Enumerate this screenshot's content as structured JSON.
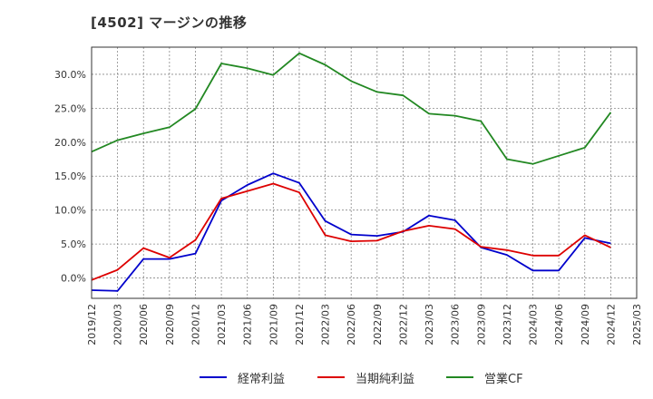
{
  "chart_data": {
    "type": "line",
    "title": "[4502]  マージンの推移",
    "x": [
      "2019/12",
      "2020/03",
      "2020/06",
      "2020/09",
      "2020/12",
      "2021/03",
      "2021/06",
      "2021/09",
      "2021/12",
      "2022/03",
      "2022/06",
      "2022/09",
      "2022/12",
      "2023/03",
      "2023/06",
      "2023/09",
      "2023/12",
      "2024/03",
      "2024/06",
      "2024/09",
      "2024/12",
      "2025/03"
    ],
    "ylim": [
      -3.0,
      34.0
    ],
    "yticks": [
      0,
      5,
      10,
      15,
      20,
      25,
      30
    ],
    "ytick_labels": [
      "0.0%",
      "5.0%",
      "10.0%",
      "15.0%",
      "20.0%",
      "25.0%",
      "30.0%"
    ],
    "grid": true,
    "legend_position": "bottom",
    "series": [
      {
        "name": "経常利益",
        "color": "#0000cc",
        "values": [
          -1.8,
          -1.9,
          2.8,
          2.8,
          3.6,
          11.4,
          13.7,
          15.4,
          14.0,
          8.4,
          6.4,
          6.2,
          6.8,
          9.2,
          8.5,
          4.5,
          3.4,
          1.1,
          1.1,
          5.9,
          5.1,
          null
        ]
      },
      {
        "name": "当期純利益",
        "color": "#dd0000",
        "values": [
          -0.3,
          1.2,
          4.4,
          3.0,
          5.6,
          11.7,
          12.8,
          13.9,
          12.6,
          6.3,
          5.4,
          5.5,
          6.9,
          7.7,
          7.2,
          4.6,
          4.1,
          3.3,
          3.3,
          6.3,
          4.5,
          null
        ]
      },
      {
        "name": "営業CF",
        "color": "#228822",
        "values": [
          18.6,
          20.3,
          21.3,
          22.2,
          24.9,
          31.6,
          30.9,
          29.9,
          33.1,
          31.4,
          29.0,
          27.4,
          26.9,
          24.2,
          23.9,
          23.1,
          17.5,
          16.8,
          18.0,
          19.2,
          24.4,
          null
        ]
      }
    ]
  }
}
